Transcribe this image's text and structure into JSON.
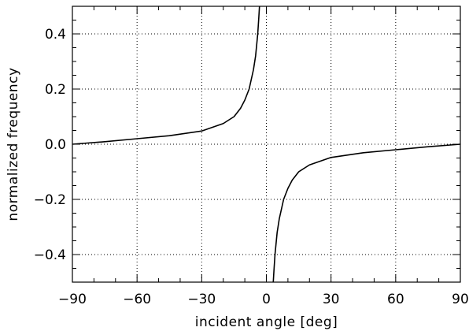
{
  "chart_data": {
    "type": "line",
    "title": "",
    "xlabel": "incident angle [deg]",
    "ylabel": "normalized frequency",
    "xlim": [
      -90,
      90
    ],
    "ylim": [
      -0.5,
      0.5
    ],
    "grid": true,
    "grid_style": "dotted",
    "xticks": [
      -90,
      -60,
      -30,
      0,
      30,
      60,
      90
    ],
    "xtick_labels": [
      "−90",
      "−60",
      "−30",
      "0",
      "30",
      "60",
      "90"
    ],
    "yticks": [
      -0.4,
      -0.2,
      0.0,
      0.2,
      0.4
    ],
    "ytick_labels": [
      "−0.4",
      "−0.2",
      "0.0",
      "0.2",
      "0.4"
    ],
    "series": [
      {
        "name": "",
        "color": "#000000",
        "x": [
          -90,
          -75,
          -60,
          -45,
          -30,
          -20,
          -15,
          -12,
          -10,
          -8,
          -6,
          -5,
          -4,
          -3.5,
          -3.2
        ],
        "y": [
          0.0,
          0.009,
          0.02,
          0.031,
          0.048,
          0.075,
          0.1,
          0.13,
          0.16,
          0.2,
          0.27,
          0.32,
          0.4,
          0.46,
          0.5
        ]
      },
      {
        "name": "",
        "color": "#000000",
        "x": [
          3.2,
          3.5,
          4,
          5,
          6,
          8,
          10,
          12,
          15,
          20,
          30,
          45,
          60,
          75,
          90
        ],
        "y": [
          -0.5,
          -0.46,
          -0.4,
          -0.32,
          -0.27,
          -0.2,
          -0.16,
          -0.13,
          -0.1,
          -0.075,
          -0.048,
          -0.031,
          -0.02,
          -0.009,
          0.0
        ]
      }
    ]
  }
}
